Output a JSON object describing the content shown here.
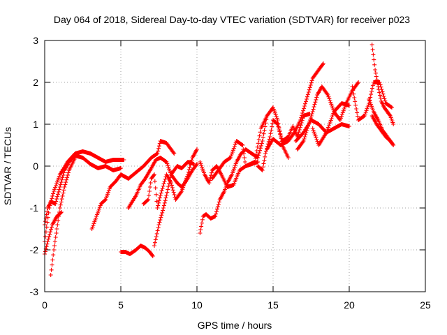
{
  "chart_data": {
    "type": "scatter",
    "title": "Day 064 of 2018, Sidereal Day-to-day VTEC variation (SDTVAR) for receiver p023",
    "xlabel": "GPS time / hours",
    "ylabel": "SDTVAR / TECUs",
    "xlim": [
      0,
      25
    ],
    "ylim": [
      -3,
      3
    ],
    "xticks": [
      0,
      5,
      10,
      15,
      20,
      25
    ],
    "yticks": [
      -3,
      -2,
      -1,
      0,
      1,
      2,
      3
    ],
    "xtick_labels": [
      "0",
      "5",
      "10",
      "15",
      "20",
      "25"
    ],
    "ytick_labels": [
      "-3",
      "-2",
      "-1",
      "0",
      "1",
      "2",
      "3"
    ],
    "grid": true,
    "marker": "plus",
    "color": "#ff0000",
    "series": [
      {
        "name": "track-1",
        "x": [
          0.0,
          0.3,
          0.6,
          1.0,
          1.5,
          2.0,
          2.5,
          3.0,
          3.5,
          4.0,
          4.5,
          5.0,
          5.2
        ],
        "y": [
          -1.8,
          -1.0,
          -0.6,
          -0.2,
          0.1,
          0.3,
          0.35,
          0.3,
          0.2,
          0.1,
          0.15,
          0.15,
          0.15
        ]
      },
      {
        "name": "track-2",
        "x": [
          0.0,
          0.2,
          0.4,
          0.7,
          1.0,
          1.3,
          1.6,
          2.0,
          2.5,
          3.0,
          3.5,
          4.0,
          4.5,
          5.0
        ],
        "y": [
          -1.4,
          -1.0,
          -0.85,
          -0.9,
          -0.5,
          -0.1,
          0.1,
          0.25,
          0.2,
          0.05,
          -0.05,
          0.0,
          -0.1,
          -0.05
        ]
      },
      {
        "name": "track-3",
        "x": [
          0.4,
          0.6,
          0.8,
          1.0,
          1.3,
          1.6,
          2.0
        ],
        "y": [
          -2.6,
          -2.0,
          -1.5,
          -1.0,
          -0.5,
          -0.1,
          0.2
        ]
      },
      {
        "name": "track-4",
        "x": [
          0.0,
          0.2,
          0.5,
          0.8,
          1.1
        ],
        "y": [
          -2.1,
          -1.8,
          -1.4,
          -1.2,
          -1.1
        ]
      },
      {
        "name": "track-5",
        "x": [
          3.1,
          3.4,
          3.7,
          4.0,
          4.3,
          4.7,
          5.0,
          5.5,
          6.0,
          6.5,
          7.0,
          7.4,
          7.6,
          8.0,
          8.5
        ],
        "y": [
          -1.5,
          -1.2,
          -0.9,
          -0.8,
          -0.5,
          -0.35,
          -0.2,
          -0.3,
          -0.15,
          0.0,
          0.2,
          0.3,
          0.6,
          0.55,
          0.3
        ]
      },
      {
        "name": "track-6",
        "x": [
          5.0,
          5.3,
          5.6,
          6.0,
          6.3,
          6.6,
          6.9,
          7.1
        ],
        "y": [
          -2.05,
          -2.05,
          -2.1,
          -2.0,
          -1.9,
          -1.95,
          -2.05,
          -2.15
        ]
      },
      {
        "name": "track-7",
        "x": [
          5.5,
          6.0,
          6.3,
          6.6,
          7.0,
          7.3,
          7.6,
          8.0,
          8.3,
          8.7,
          9.0,
          9.3,
          9.7,
          10.0
        ],
        "y": [
          -1.0,
          -0.7,
          -0.45,
          -0.3,
          -0.05,
          0.15,
          0.2,
          0.1,
          -0.2,
          -0.4,
          -0.5,
          -0.35,
          -0.1,
          0.05
        ]
      },
      {
        "name": "track-8",
        "x": [
          6.5,
          6.8,
          7.0,
          7.2,
          7.4,
          7.6,
          8.0,
          8.3,
          8.6,
          9.0,
          9.4,
          9.7,
          10.0
        ],
        "y": [
          -0.9,
          -0.8,
          -0.3,
          -0.2,
          -1.0,
          -0.7,
          -0.2,
          -0.4,
          -0.8,
          -0.6,
          -0.2,
          0.2,
          0.4
        ]
      },
      {
        "name": "track-9",
        "x": [
          7.2,
          7.5,
          7.8,
          8.0,
          8.3,
          8.7,
          9.0,
          9.4,
          9.8
        ],
        "y": [
          -1.9,
          -1.4,
          -1.0,
          -0.7,
          -0.2,
          0.0,
          -0.05,
          0.1,
          0.05
        ]
      },
      {
        "name": "track-10",
        "x": [
          10.2,
          10.5,
          10.8,
          11.0,
          11.3,
          11.6,
          12.0,
          12.4,
          12.8,
          13.2,
          13.6,
          14.0
        ],
        "y": [
          0.1,
          -0.2,
          -0.4,
          -0.1,
          0.0,
          -0.2,
          -0.5,
          -0.45,
          -0.1,
          0.0,
          0.05,
          0.1
        ]
      },
      {
        "name": "track-11",
        "x": [
          10.2,
          10.4,
          10.6,
          10.9,
          11.2,
          11.5,
          11.8,
          12.0,
          12.3,
          12.6,
          12.9,
          13.2,
          13.6,
          14.0,
          14.3,
          14.6
        ],
        "y": [
          -1.6,
          -1.2,
          -1.15,
          -1.25,
          -1.2,
          -0.8,
          -0.6,
          -0.4,
          -0.2,
          0.1,
          0.3,
          0.4,
          0.3,
          0.2,
          0.6,
          1.2
        ]
      },
      {
        "name": "track-12",
        "x": [
          11.0,
          11.4,
          11.8,
          12.2,
          12.6,
          13.0,
          13.2,
          13.5,
          13.8,
          14.2,
          14.6,
          15.0,
          15.3,
          15.6,
          16.0
        ],
        "y": [
          -0.3,
          -0.1,
          0.1,
          0.2,
          0.6,
          0.5,
          0.0,
          0.05,
          0.1,
          0.9,
          1.2,
          1.4,
          1.1,
          0.5,
          0.2
        ]
      },
      {
        "name": "track-13",
        "x": [
          14.0,
          14.3,
          14.5,
          14.8,
          15.0,
          15.3,
          15.6,
          16.0,
          16.3,
          16.6,
          17.0,
          17.4
        ],
        "y": [
          0.0,
          -0.1,
          0.3,
          0.7,
          1.1,
          1.0,
          0.6,
          0.7,
          0.95,
          0.7,
          1.2,
          1.25
        ]
      },
      {
        "name": "track-14",
        "x": [
          14.6,
          15.0,
          15.5,
          16.0,
          16.4,
          16.8,
          17.2,
          17.6,
          18.0,
          18.3
        ],
        "y": [
          0.4,
          0.65,
          0.5,
          0.6,
          0.8,
          1.1,
          1.6,
          2.1,
          2.3,
          2.45
        ]
      },
      {
        "name": "track-15",
        "x": [
          16.6,
          17.0,
          17.3,
          17.6,
          17.9,
          18.2,
          18.6,
          19.0,
          19.4,
          19.8,
          20.2,
          20.6
        ],
        "y": [
          0.4,
          0.6,
          0.95,
          1.3,
          1.7,
          1.9,
          1.7,
          1.3,
          1.1,
          1.5,
          1.8,
          2.0
        ]
      },
      {
        "name": "track-16",
        "x": [
          17.6,
          18.0,
          18.5,
          19.0,
          19.5,
          20.0
        ],
        "y": [
          0.9,
          0.5,
          0.8,
          1.3,
          1.5,
          1.45
        ]
      },
      {
        "name": "track-17",
        "x": [
          16.5,
          17.0,
          17.5,
          18.0,
          18.5,
          19.0,
          19.5,
          20.0
        ],
        "y": [
          0.6,
          0.8,
          1.1,
          1.0,
          0.8,
          0.9,
          1.0,
          0.95
        ]
      },
      {
        "name": "track-18",
        "x": [
          21.5,
          21.7,
          21.9,
          22.1,
          22.3,
          22.5,
          22.7,
          22.9
        ],
        "y": [
          2.9,
          2.3,
          1.9,
          1.55,
          1.4,
          1.3,
          1.2,
          1.0
        ]
      },
      {
        "name": "track-19",
        "x": [
          20.2,
          20.6,
          21.0,
          21.3,
          21.6,
          22.0,
          22.4,
          22.8
        ],
        "y": [
          1.9,
          1.1,
          1.2,
          1.5,
          2.0,
          2.0,
          1.5,
          1.4
        ]
      },
      {
        "name": "track-20",
        "x": [
          21.3,
          21.6,
          21.9,
          22.2,
          22.5,
          22.8
        ],
        "y": [
          1.6,
          1.3,
          1.1,
          0.85,
          0.7,
          0.55
        ]
      },
      {
        "name": "track-21",
        "x": [
          21.5,
          21.8,
          22.1,
          22.4,
          22.7,
          22.9
        ],
        "y": [
          1.2,
          1.0,
          0.85,
          0.7,
          0.6,
          0.5
        ]
      }
    ]
  }
}
